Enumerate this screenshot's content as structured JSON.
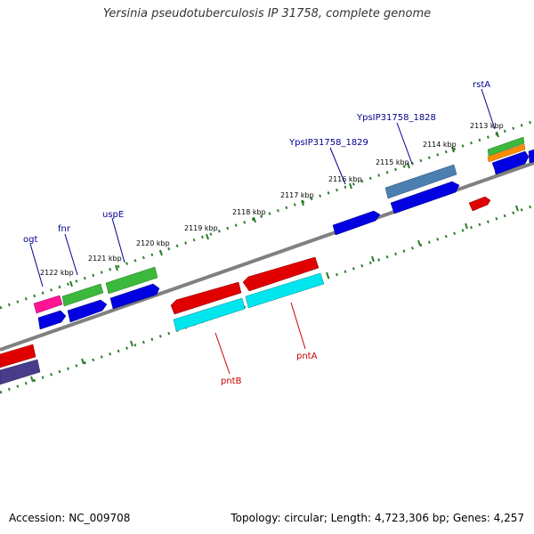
{
  "title": "Yersinia pseudotuberculosis IP 31758, complete genome",
  "footer": {
    "accession": "Accession: NC_009708",
    "stats": "Topology: circular; Length: 4,723,306 bp; Genes: 4,257"
  },
  "scale_labels": [
    "2113 kbp",
    "2114 kbp",
    "2115 kbp",
    "2116 kbp",
    "2117 kbp",
    "2118 kbp",
    "2119 kbp",
    "2120 kbp",
    "2121 kbp",
    "2122 kbp"
  ],
  "gene_labels": {
    "forward": [
      "rstA",
      "YpsIP31758_1828",
      "YpsIP31758_1829",
      "uspE",
      "fnr",
      "ogt"
    ],
    "reverse": [
      "pntA",
      "pntB"
    ]
  },
  "colors": {
    "label_forward": "#00008B",
    "label_reverse": "#CC0000",
    "backbone": "#808080",
    "scale_ticks": "#2E7D2E",
    "feature_blue": "#0000E0",
    "feature_red": "#E00000",
    "feature_cyan": "#00E5EE",
    "feature_green": "#3CB83C",
    "feature_pink": "#FF1493",
    "feature_orange": "#FF8C00",
    "feature_steelblue": "#4A7FB0",
    "feature_slate": "#483D8B"
  }
}
